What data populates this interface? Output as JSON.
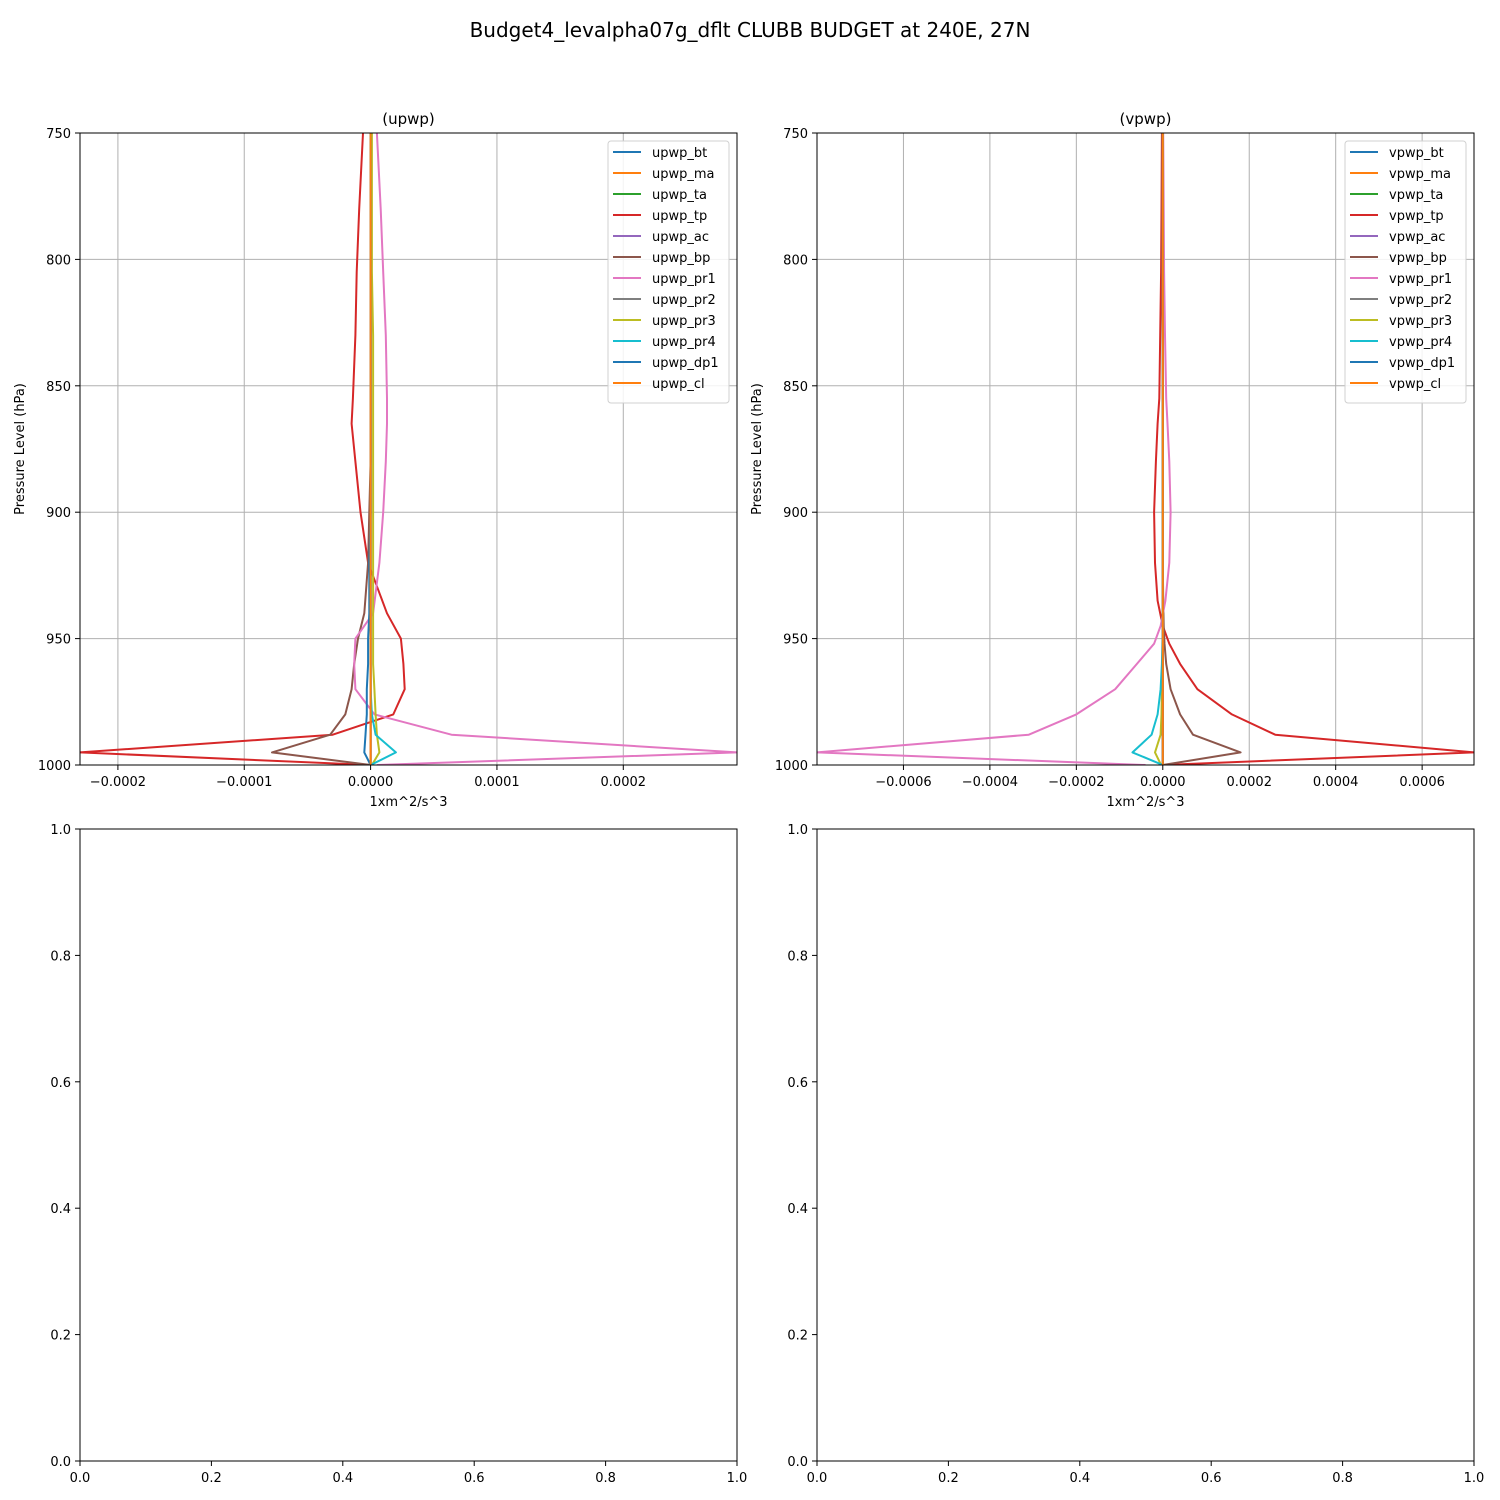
{
  "figure": {
    "suptitle": "Budget4_levalpha07g_dflt CLUBB BUDGET at 240E, 27N"
  },
  "chart_data": [
    {
      "type": "line",
      "title": "(upwp)",
      "xlabel": "1xm^2/s^3",
      "ylabel": "Pressure Level (hPa)",
      "xlim": [
        -0.00023,
        0.00029
      ],
      "ylim": [
        1000,
        750
      ],
      "grid": true,
      "legend_placement": "top-right",
      "xticks": [
        -0.0002,
        -0.0001,
        0.0,
        0.0001,
        0.0002
      ],
      "xtick_labels": [
        "−0.0002",
        "−0.0001",
        "0.0000",
        "0.0001",
        "0.0002"
      ],
      "yticks": [
        750,
        800,
        850,
        900,
        950,
        1000
      ],
      "ytick_labels": [
        "750",
        "800",
        "850",
        "900",
        "950",
        "1000"
      ],
      "y": [
        750,
        780,
        805,
        830,
        855,
        865,
        880,
        900,
        920,
        940,
        950,
        960,
        970,
        980,
        988,
        995,
        1000
      ],
      "series": [
        {
          "name": "upwp_bt",
          "color": "#1f77b4",
          "values": [
            0,
            0,
            0,
            0,
            0,
            0,
            0,
            0,
            0,
            0,
            0,
            0,
            0,
            0,
            0,
            0,
            0
          ]
        },
        {
          "name": "upwp_ma",
          "color": "#ff7f0e",
          "values": [
            0,
            0,
            0,
            0,
            0,
            0,
            0,
            0,
            0,
            0,
            0,
            0,
            0,
            0,
            0,
            0,
            0
          ]
        },
        {
          "name": "upwp_ta",
          "color": "#2ca02c",
          "values": [
            0,
            0,
            0,
            0,
            0,
            0,
            0,
            0,
            0,
            0,
            0,
            0,
            0,
            0,
            0,
            0,
            0
          ]
        },
        {
          "name": "upwp_tp",
          "color": "#d62728",
          "values": [
            -6e-06,
            -9e-06,
            -1.1e-05,
            -1.2e-05,
            -1.4e-05,
            -1.5e-05,
            -1.2e-05,
            -8e-06,
            -2e-06,
            1.3e-05,
            2.4e-05,
            2.6e-05,
            2.7e-05,
            1.8e-05,
            -3e-05,
            -0.00023,
            0
          ]
        },
        {
          "name": "upwp_ac",
          "color": "#9467bd",
          "values": [
            0,
            0,
            0,
            0,
            0,
            0,
            0,
            0,
            0,
            0,
            0,
            0,
            0,
            0,
            0,
            0,
            0
          ]
        },
        {
          "name": "upwp_bp",
          "color": "#8c564b",
          "values": [
            0,
            0,
            0,
            0,
            0,
            0,
            0,
            -1e-06,
            -2e-06,
            -5e-06,
            -1e-05,
            -1.3e-05,
            -1.5e-05,
            -2e-05,
            -3.2e-05,
            -7.8e-05,
            0
          ]
        },
        {
          "name": "upwp_pr1",
          "color": "#e377c2",
          "values": [
            5e-06,
            8e-06,
            1e-05,
            1.2e-05,
            1.3e-05,
            1.3e-05,
            1.2e-05,
            1e-05,
            7e-06,
            2e-06,
            -1.2e-05,
            -1.3e-05,
            -1.2e-05,
            3e-06,
            6.4e-05,
            0.00029,
            5e-06
          ]
        },
        {
          "name": "upwp_pr2",
          "color": "#7f7f7f",
          "values": [
            0,
            0,
            0,
            0,
            0,
            0,
            0,
            0,
            0,
            0,
            0,
            0,
            0,
            0,
            0,
            0,
            0
          ]
        },
        {
          "name": "upwp_pr3",
          "color": "#bcbd22",
          "values": [
            1e-06,
            1e-06,
            1e-06,
            2e-06,
            2e-06,
            2e-06,
            2e-06,
            2e-06,
            2e-06,
            2e-06,
            2e-06,
            2e-06,
            3e-06,
            4e-06,
            5e-06,
            7e-06,
            1e-06
          ]
        },
        {
          "name": "upwp_pr4",
          "color": "#17becf",
          "values": [
            0,
            0,
            0,
            0,
            0,
            0,
            0,
            0,
            0,
            0,
            0,
            0,
            0,
            1e-06,
            4e-06,
            2e-05,
            0
          ]
        },
        {
          "name": "upwp_dp1",
          "color": "#1f77b4",
          "values": [
            0,
            0,
            0,
            0,
            0,
            0,
            0,
            0,
            -1e-06,
            -1e-06,
            -2e-06,
            -2e-06,
            -3e-06,
            -3e-06,
            -4e-06,
            -5e-06,
            0
          ]
        },
        {
          "name": "upwp_cl",
          "color": "#ff7f0e",
          "values": [
            0,
            0,
            0,
            0,
            0,
            0,
            0,
            0,
            0,
            0,
            0,
            0,
            0,
            0,
            0,
            0,
            0
          ]
        }
      ]
    },
    {
      "type": "line",
      "title": "(vpwp)",
      "xlabel": "1xm^2/s^3",
      "ylabel": "Pressure Level (hPa)",
      "xlim": [
        -0.0008,
        0.00072
      ],
      "ylim": [
        1000,
        750
      ],
      "grid": true,
      "legend_placement": "top-right",
      "xticks": [
        -0.0006,
        -0.0004,
        -0.0002,
        0.0,
        0.0002,
        0.0004,
        0.0006
      ],
      "xtick_labels": [
        "−0.0006",
        "−0.0004",
        "−0.0002",
        "0.0000",
        "0.0002",
        "0.0004",
        "0.0006"
      ],
      "yticks": [
        750,
        800,
        850,
        900,
        950,
        1000
      ],
      "ytick_labels": [
        "750",
        "800",
        "850",
        "900",
        "950",
        "1000"
      ],
      "y": [
        750,
        780,
        805,
        830,
        855,
        865,
        880,
        900,
        920,
        935,
        945,
        952,
        960,
        970,
        980,
        988,
        995,
        1000
      ],
      "series": [
        {
          "name": "vpwp_bt",
          "color": "#1f77b4",
          "values": [
            0,
            0,
            0,
            0,
            0,
            0,
            0,
            0,
            0,
            0,
            0,
            0,
            0,
            0,
            0,
            0,
            0,
            0
          ]
        },
        {
          "name": "vpwp_ma",
          "color": "#ff7f0e",
          "values": [
            0,
            0,
            0,
            0,
            0,
            0,
            0,
            0,
            0,
            0,
            0,
            0,
            0,
            0,
            0,
            0,
            0,
            0
          ]
        },
        {
          "name": "vpwp_ta",
          "color": "#2ca02c",
          "values": [
            0,
            0,
            0,
            0,
            0,
            0,
            0,
            0,
            0,
            0,
            0,
            0,
            0,
            0,
            0,
            0,
            0,
            0
          ]
        },
        {
          "name": "vpwp_tp",
          "color": "#d62728",
          "values": [
            -2e-06,
            -3e-06,
            -4e-06,
            -6e-06,
            -8e-06,
            -1.2e-05,
            -1.6e-05,
            -2e-05,
            -1.8e-05,
            -1.2e-05,
            0.0,
            1.5e-05,
            4e-05,
            8e-05,
            0.00016,
            0.00026,
            0.00072,
            0.0
          ]
        },
        {
          "name": "vpwp_ac",
          "color": "#9467bd",
          "values": [
            0,
            0,
            0,
            0,
            0,
            0,
            0,
            0,
            0,
            0,
            0,
            0,
            0,
            0,
            0,
            0,
            0,
            0
          ]
        },
        {
          "name": "vpwp_bp",
          "color": "#8c564b",
          "values": [
            0,
            0,
            0,
            0,
            0,
            0,
            0,
            0,
            0,
            1e-06,
            2e-06,
            4e-06,
            8e-06,
            1.8e-05,
            4e-05,
            7e-05,
            0.00018,
            0.0
          ]
        },
        {
          "name": "vpwp_pr1",
          "color": "#e377c2",
          "values": [
            1e-06,
            2e-06,
            3e-06,
            5e-06,
            8e-06,
            1.1e-05,
            1.5e-05,
            1.8e-05,
            1.5e-05,
            6e-06,
            -5e-06,
            -2e-05,
            -6e-05,
            -0.00011,
            -0.0002,
            -0.00031,
            -0.0008,
            -4e-05
          ]
        },
        {
          "name": "vpwp_pr2",
          "color": "#7f7f7f",
          "values": [
            0,
            0,
            0,
            0,
            0,
            0,
            0,
            0,
            0,
            0,
            0,
            0,
            0,
            0,
            0,
            0,
            0,
            0
          ]
        },
        {
          "name": "vpwp_pr3",
          "color": "#bcbd22",
          "values": [
            0,
            0,
            0,
            0,
            0,
            0,
            0,
            0,
            0,
            0,
            0,
            0,
            -1e-06,
            -2e-06,
            -3e-06,
            -5e-06,
            -1.8e-05,
            -4e-06
          ]
        },
        {
          "name": "vpwp_pr4",
          "color": "#17becf",
          "values": [
            0,
            0,
            0,
            0,
            0,
            0,
            0,
            0,
            0,
            0,
            0,
            -1e-06,
            -2e-06,
            -5e-06,
            -1.2e-05,
            -2.6e-05,
            -7e-05,
            0.0
          ]
        },
        {
          "name": "vpwp_dp1",
          "color": "#1f77b4",
          "values": [
            0,
            0,
            0,
            0,
            0,
            0,
            0,
            0,
            0,
            0,
            0,
            0,
            0,
            0,
            0,
            0,
            0,
            0
          ]
        },
        {
          "name": "vpwp_cl",
          "color": "#ff7f0e",
          "values": [
            0,
            0,
            0,
            0,
            0,
            0,
            0,
            0,
            0,
            0,
            0,
            0,
            0,
            0,
            0,
            0,
            0,
            0
          ]
        }
      ]
    },
    {
      "type": "line",
      "title": "",
      "xlim": [
        0,
        1
      ],
      "ylim": [
        0,
        1
      ],
      "grid": false,
      "xticks": [
        0.0,
        0.2,
        0.4,
        0.6,
        0.8,
        1.0
      ],
      "xtick_labels": [
        "0.0",
        "0.2",
        "0.4",
        "0.6",
        "0.8",
        "1.0"
      ],
      "yticks": [
        0.0,
        0.2,
        0.4,
        0.6,
        0.8,
        1.0
      ],
      "ytick_labels": [
        "0.0",
        "0.2",
        "0.4",
        "0.6",
        "0.8",
        "1.0"
      ],
      "series": []
    },
    {
      "type": "line",
      "title": "",
      "xlim": [
        0,
        1
      ],
      "ylim": [
        0,
        1
      ],
      "grid": false,
      "xticks": [
        0.0,
        0.2,
        0.4,
        0.6,
        0.8,
        1.0
      ],
      "xtick_labels": [
        "0.0",
        "0.2",
        "0.4",
        "0.6",
        "0.8",
        "1.0"
      ],
      "yticks": [
        0.0,
        0.2,
        0.4,
        0.6,
        0.8,
        1.0
      ],
      "ytick_labels": [
        "0.0",
        "0.2",
        "0.4",
        "0.6",
        "0.8",
        "1.0"
      ],
      "series": []
    }
  ]
}
